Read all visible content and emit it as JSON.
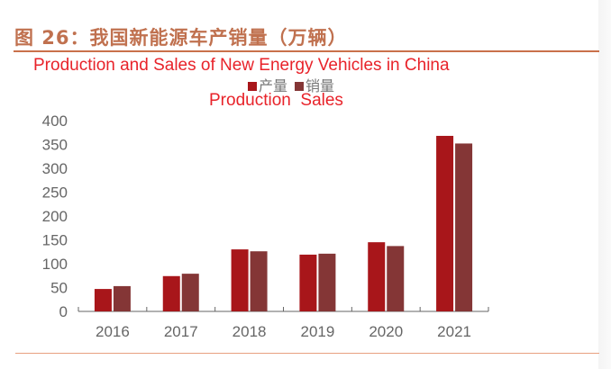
{
  "header": {
    "figure_title": "图 26：我国新能源车产销量（万辆）"
  },
  "annotation": {
    "english_title": "Production and Sales of New Energy Vehicles in China",
    "english_legend": "Production  Sales"
  },
  "chart_data": {
    "type": "bar",
    "title": "图 26：我国新能源车产销量（万辆）",
    "categories": [
      "2016",
      "2017",
      "2018",
      "2019",
      "2020",
      "2021"
    ],
    "series": [
      {
        "name": "产量",
        "color": "#a8161a",
        "values": [
          47,
          74,
          130,
          119,
          145,
          368
        ]
      },
      {
        "name": "销量",
        "color": "#843636",
        "values": [
          53,
          79,
          126,
          121,
          137,
          352
        ]
      }
    ],
    "ylim": [
      0,
      400
    ],
    "yticks": [
      "0",
      "50",
      "100",
      "150",
      "200",
      "250",
      "300",
      "350",
      "400"
    ],
    "legend": "top",
    "grid": false
  }
}
